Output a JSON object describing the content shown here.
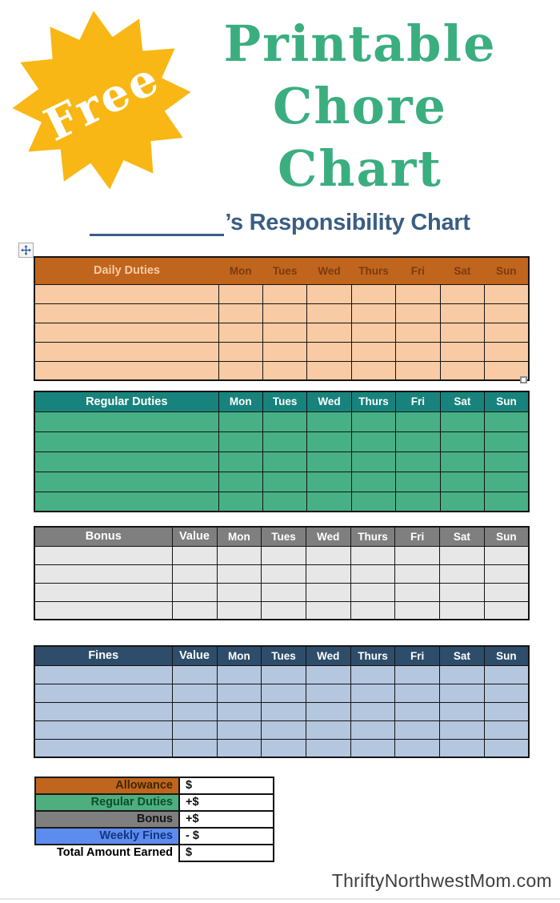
{
  "badge": {
    "label": "Free",
    "star_color": "#F8B714",
    "label_color": "#FFFFFF"
  },
  "title": {
    "lines": [
      "Printable",
      "Chore",
      "Chart"
    ],
    "color": "#3BAE80"
  },
  "heading": {
    "text": "’s  Responsibility Chart",
    "color": "#3A5E83"
  },
  "tables": [
    {
      "label": "Daily Duties",
      "value_label": "",
      "days": [
        "Mon",
        "Tues",
        "Wed",
        "Thurs",
        "Fri",
        "Sat",
        "Sun"
      ],
      "blank_rows": 5,
      "colors": {
        "header_bg": "#C0651D",
        "label_text": "#F8CBA4",
        "day_text": "#7C3A10",
        "body_bg": "#F8CBA4"
      }
    },
    {
      "label": "Regular Duties",
      "value_label": "",
      "days": [
        "Mon",
        "Tues",
        "Wed",
        "Thurs",
        "Fri",
        "Sat",
        "Sun"
      ],
      "blank_rows": 5,
      "colors": {
        "header_bg": "#17837C",
        "label_text": "#FFFFFF",
        "day_text": "#FFFFFF",
        "body_bg": "#47B185"
      }
    },
    {
      "label": "Bonus",
      "value_label": "Value",
      "days": [
        "Mon",
        "Tues",
        "Wed",
        "Thurs",
        "Fri",
        "Sat",
        "Sun"
      ],
      "blank_rows": 4,
      "colors": {
        "header_bg": "#7F7F7F",
        "label_text": "#FFFFFF",
        "day_text": "#FFFFFF",
        "body_bg": "#E7E7E7"
      }
    },
    {
      "label": "Fines",
      "value_label": "Value",
      "days": [
        "Mon",
        "Tues",
        "Wed",
        "Thurs",
        "Fri",
        "Sat",
        "Sun"
      ],
      "blank_rows": 5,
      "colors": {
        "header_bg": "#2E4D6B",
        "label_text": "#FFFFFF",
        "day_text": "#FFFFFF",
        "body_bg": "#B5C7DF"
      }
    }
  ],
  "summary": {
    "rows": [
      {
        "label": "Allowance",
        "value": "$",
        "bg": "#C0651D",
        "text": "#402800"
      },
      {
        "label": "Regular Duties",
        "value": "+$",
        "bg": "#4FAE7D",
        "text": "#0A4F2E"
      },
      {
        "label": "Bonus",
        "value": "+$",
        "bg": "#7F7F7F",
        "text": "#141414"
      },
      {
        "label": "Weekly Fines",
        "value": "- $",
        "bg": "#5D8CEF",
        "text": "#14357E"
      },
      {
        "label": "Total Amount Earned",
        "value": "$",
        "bg": "",
        "text": "#000000"
      }
    ]
  },
  "watermark": {
    "text": "ThriftyNorthwestMom.com",
    "color": "#3F3F3F"
  }
}
